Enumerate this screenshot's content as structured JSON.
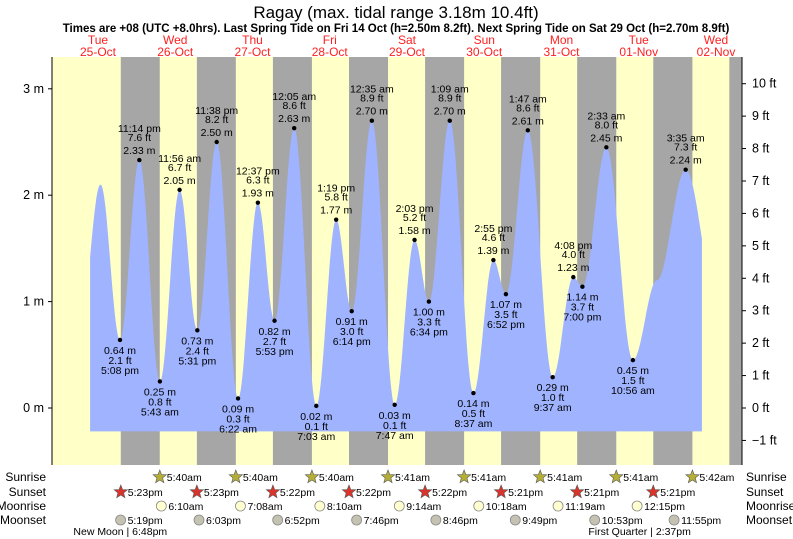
{
  "chart_data": {
    "type": "area",
    "title": "Ragay (max. tidal range 3.18m 10.4ft)",
    "subtitle": "Times are +08 (UTC +8.0hrs). Last Spring Tide on Fri 14 Oct (h=2.50m 8.2ft). Next Spring Tide on Sat 29 Oct (h=2.70m 8.9ft)",
    "time_unit": "hours since Tue 25-Oct 00:00",
    "days": [
      {
        "dow": "Tue",
        "date": "25-Oct"
      },
      {
        "dow": "Wed",
        "date": "26-Oct"
      },
      {
        "dow": "Thu",
        "date": "27-Oct"
      },
      {
        "dow": "Fri",
        "date": "28-Oct"
      },
      {
        "dow": "Sat",
        "date": "29-Oct"
      },
      {
        "dow": "Sun",
        "date": "30-Oct"
      },
      {
        "dow": "Mon",
        "date": "31-Oct"
      },
      {
        "dow": "Tue",
        "date": "01-Nov"
      },
      {
        "dow": "Wed",
        "date": "02-Nov"
      }
    ],
    "y_left": {
      "unit": "m",
      "range": [
        -0.5,
        3.3
      ],
      "ticks": [
        {
          "v": 0,
          "label": "0 m"
        },
        {
          "v": 1,
          "label": "1 m"
        },
        {
          "v": 2,
          "label": "2 m"
        },
        {
          "v": 3,
          "label": "3 m"
        }
      ]
    },
    "y_right": {
      "unit": "ft",
      "ticks": [
        {
          "v": -1,
          "label": "−1 ft"
        },
        {
          "v": 0,
          "label": "0 ft"
        },
        {
          "v": 1,
          "label": "1 ft"
        },
        {
          "v": 2,
          "label": "2 ft"
        },
        {
          "v": 3,
          "label": "3 ft"
        },
        {
          "v": 4,
          "label": "4 ft"
        },
        {
          "v": 5,
          "label": "5 ft"
        },
        {
          "v": 6,
          "label": "6 ft"
        },
        {
          "v": 7,
          "label": "7 ft"
        },
        {
          "v": 8,
          "label": "8 ft"
        },
        {
          "v": 9,
          "label": "9 ft"
        },
        {
          "v": 10,
          "label": "10 ft"
        }
      ]
    },
    "curve_range": [
      7.7,
      200.7
    ],
    "unlabeled_points": [
      {
        "t": 4,
        "h": 0.6
      },
      {
        "t": 11.0,
        "h": 2.1
      },
      {
        "t": 186.5,
        "h": 1.2
      },
      {
        "t": 205,
        "h": 1.1
      }
    ],
    "extremes": [
      {
        "type": "low",
        "t": 17.13,
        "h": 0.64,
        "m": "0.64 m",
        "ft": "2.1 ft",
        "time": "5:08 pm"
      },
      {
        "type": "high",
        "t": 23.23,
        "h": 2.33,
        "m": "2.33 m",
        "ft": "7.6 ft",
        "time": "11:14 pm"
      },
      {
        "type": "low",
        "t": 29.72,
        "h": 0.25,
        "m": "0.25 m",
        "ft": "0.8 ft",
        "time": "5:43 am"
      },
      {
        "type": "high",
        "t": 35.93,
        "h": 2.05,
        "m": "2.05 m",
        "ft": "6.7 ft",
        "time": "11:56 am"
      },
      {
        "type": "low",
        "t": 41.52,
        "h": 0.73,
        "m": "0.73 m",
        "ft": "2.4 ft",
        "time": "5:31 pm"
      },
      {
        "type": "high",
        "t": 47.63,
        "h": 2.5,
        "m": "2.50 m",
        "ft": "8.2 ft",
        "time": "11:38 pm"
      },
      {
        "type": "low",
        "t": 54.37,
        "h": 0.09,
        "m": "0.09 m",
        "ft": "0.3 ft",
        "time": "6:22 am"
      },
      {
        "type": "high",
        "t": 60.62,
        "h": 1.93,
        "m": "1.93 m",
        "ft": "6.3 ft",
        "time": "12:37 pm"
      },
      {
        "type": "low",
        "t": 65.88,
        "h": 0.82,
        "m": "0.82 m",
        "ft": "2.7 ft",
        "time": "5:53 pm"
      },
      {
        "type": "high",
        "t": 72.08,
        "h": 2.63,
        "m": "2.63 m",
        "ft": "8.6 ft",
        "time": "12:05 am"
      },
      {
        "type": "low",
        "t": 79.05,
        "h": 0.02,
        "m": "0.02 m",
        "ft": "0.1 ft",
        "time": "7:03 am"
      },
      {
        "type": "high",
        "t": 85.32,
        "h": 1.77,
        "m": "1.77 m",
        "ft": "5.8 ft",
        "time": "1:19 pm"
      },
      {
        "type": "low",
        "t": 90.23,
        "h": 0.91,
        "m": "0.91 m",
        "ft": "3.0 ft",
        "time": "6:14 pm"
      },
      {
        "type": "high",
        "t": 96.58,
        "h": 2.7,
        "m": "2.70 m",
        "ft": "8.9 ft",
        "time": "12:35 am"
      },
      {
        "type": "low",
        "t": 103.78,
        "h": 0.03,
        "m": "0.03 m",
        "ft": "0.1 ft",
        "time": "7:47 am"
      },
      {
        "type": "high",
        "t": 110.05,
        "h": 1.58,
        "m": "1.58 m",
        "ft": "5.2 ft",
        "time": "2:03 pm"
      },
      {
        "type": "low",
        "t": 114.57,
        "h": 1.0,
        "m": "1.00 m",
        "ft": "3.3 ft",
        "time": "6:34 pm"
      },
      {
        "type": "high",
        "t": 121.15,
        "h": 2.7,
        "m": "2.70 m",
        "ft": "8.9 ft",
        "time": "1:09 am"
      },
      {
        "type": "low",
        "t": 128.62,
        "h": 0.14,
        "m": "0.14 m",
        "ft": "0.5 ft",
        "time": "8:37 am"
      },
      {
        "type": "high",
        "t": 134.92,
        "h": 1.39,
        "m": "1.39 m",
        "ft": "4.6 ft",
        "time": "2:55 pm"
      },
      {
        "type": "low",
        "t": 138.87,
        "h": 1.07,
        "m": "1.07 m",
        "ft": "3.5 ft",
        "time": "6:52 pm"
      },
      {
        "type": "high",
        "t": 145.78,
        "h": 2.61,
        "m": "2.61 m",
        "ft": "8.6 ft",
        "time": "1:47 am"
      },
      {
        "type": "low",
        "t": 153.62,
        "h": 0.29,
        "m": "0.29 m",
        "ft": "1.0 ft",
        "time": "9:37 am"
      },
      {
        "type": "high",
        "t": 160.13,
        "h": 1.23,
        "m": "1.23 m",
        "ft": "4.0 ft",
        "time": "4:08 pm"
      },
      {
        "type": "low",
        "t": 163.0,
        "h": 1.14,
        "m": "1.14 m",
        "ft": "3.7 ft",
        "time": "7:00 pm"
      },
      {
        "type": "high",
        "t": 170.55,
        "h": 2.45,
        "m": "2.45 m",
        "ft": "8.0 ft",
        "time": "2:33 am"
      },
      {
        "type": "low",
        "t": 178.93,
        "h": 0.45,
        "m": "0.45 m",
        "ft": "1.5 ft",
        "time": "10:56 am"
      },
      {
        "type": "high",
        "t": 195.58,
        "h": 2.24,
        "m": "2.24 m",
        "ft": "7.3 ft",
        "time": "3:35 am"
      }
    ],
    "rows": {
      "sunrise": "Sunrise",
      "sunset": "Sunset",
      "moonrise": "Moonrise",
      "moonset": "Moonset"
    },
    "sunrise": [
      {
        "t": 29.67,
        "label": "5:40am"
      },
      {
        "t": 53.67,
        "label": "5:40am"
      },
      {
        "t": 77.67,
        "label": "5:40am"
      },
      {
        "t": 101.68,
        "label": "5:41am"
      },
      {
        "t": 125.68,
        "label": "5:41am"
      },
      {
        "t": 149.68,
        "label": "5:41am"
      },
      {
        "t": 173.68,
        "label": "5:41am"
      },
      {
        "t": 197.7,
        "label": "5:42am"
      }
    ],
    "sunset": [
      {
        "t": 17.38,
        "label": "5:23pm"
      },
      {
        "t": 41.38,
        "label": "5:23pm"
      },
      {
        "t": 65.37,
        "label": "5:22pm"
      },
      {
        "t": 89.37,
        "label": "5:22pm"
      },
      {
        "t": 113.37,
        "label": "5:22pm"
      },
      {
        "t": 137.35,
        "label": "5:21pm"
      },
      {
        "t": 161.35,
        "label": "5:21pm"
      },
      {
        "t": 185.35,
        "label": "5:21pm"
      }
    ],
    "moonrise": [
      {
        "t": 30.17,
        "label": "6:10am"
      },
      {
        "t": 55.13,
        "label": "7:08am"
      },
      {
        "t": 80.17,
        "label": "8:10am"
      },
      {
        "t": 105.23,
        "label": "9:14am"
      },
      {
        "t": 130.3,
        "label": "10:18am"
      },
      {
        "t": 155.32,
        "label": "11:19am"
      },
      {
        "t": 180.25,
        "label": "12:15pm"
      }
    ],
    "moonset": [
      {
        "t": 17.32,
        "label": "5:19pm"
      },
      {
        "t": 42.05,
        "label": "6:03pm"
      },
      {
        "t": 66.87,
        "label": "6:52pm"
      },
      {
        "t": 91.77,
        "label": "7:46pm"
      },
      {
        "t": 116.77,
        "label": "8:46pm"
      },
      {
        "t": 141.82,
        "label": "9:49pm"
      },
      {
        "t": 166.88,
        "label": "10:53pm"
      },
      {
        "t": 191.92,
        "label": "11:55pm"
      }
    ],
    "moon_phases": [
      {
        "t": 18.8,
        "label": "New Moon | 6:48pm"
      },
      {
        "t": 182.62,
        "label": "First Quarter | 2:37pm"
      }
    ],
    "colors": {
      "water": "#9fb3ff",
      "day": "#ffffc8",
      "night": "#a6a6a6",
      "date": "#ff2020",
      "sunrise": "#b5b035",
      "sunset": "#d8342b",
      "moonrise": "#ffffd0",
      "moonset": "#c4c2b0"
    }
  }
}
